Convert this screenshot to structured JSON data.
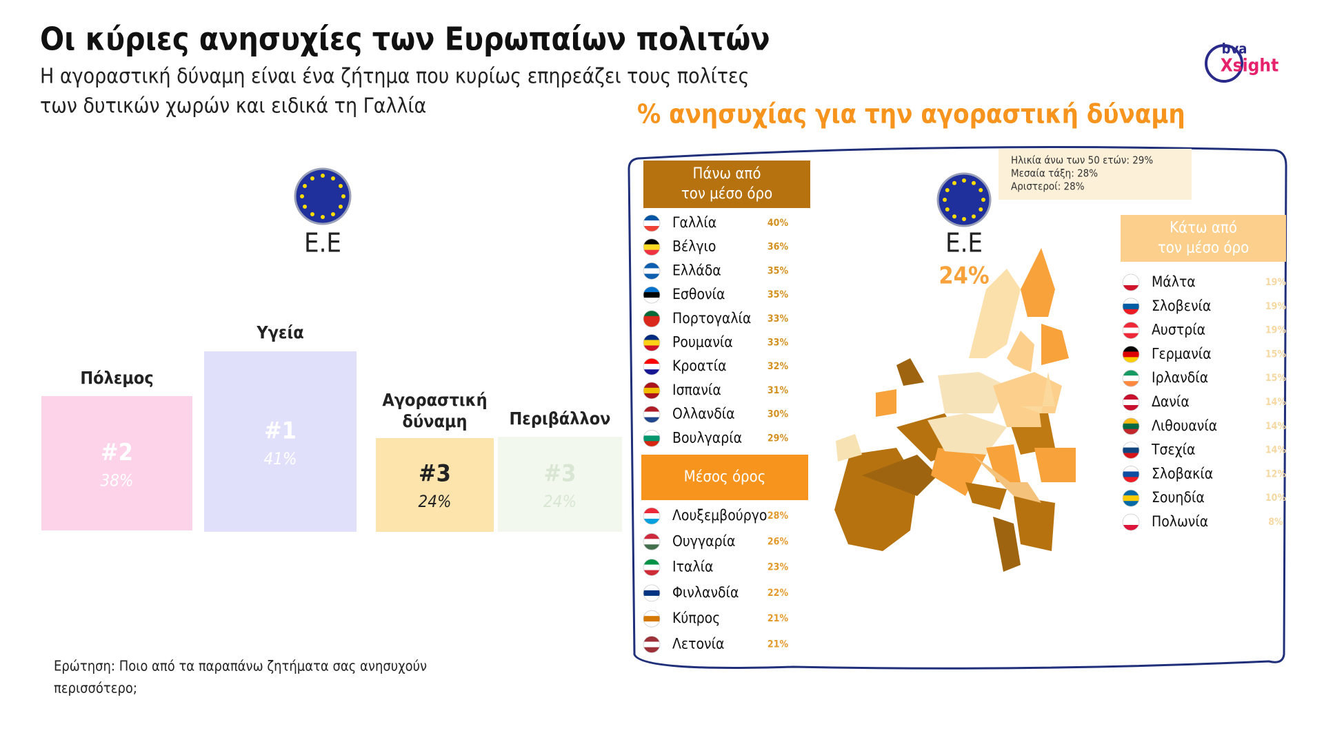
{
  "header": {
    "title": "Οι κύριες ανησυχίες των Ευρωπαίων πολιτών",
    "subtitle_lines": [
      "Η αγοραστική δύναμη είναι ένα ζήτημα που κυρίως επηρεάζει τους πολίτες",
      "των δυτικών χωρών και ειδικά τη Γαλλία"
    ],
    "logo": [
      "bva",
      "Xsight"
    ]
  },
  "left": {
    "eu_label": "Ε.Ε",
    "concerns": [
      {
        "label_lines": [
          "Πόλεμος"
        ],
        "rank": "#2",
        "value": "38%",
        "color": "#fdd3ea"
      },
      {
        "label_lines": [
          "Υγεία"
        ],
        "rank": "#1",
        "value": "41%",
        "color": "#e0e0fb"
      },
      {
        "label_lines": [
          "Αγοραστική",
          "δύναμη"
        ],
        "rank": "#3",
        "value": "24%",
        "color": "#fde4ac"
      },
      {
        "label_lines": [
          "Περιβάλλον"
        ],
        "rank": "#3",
        "value": "24%",
        "color": "#f3f8ee"
      }
    ],
    "question_lines": [
      "Ερώτηση: Ποιο από τα παραπάνω ζητήματα σας ανησυχούν",
      "περισσότερο;"
    ]
  },
  "map": {
    "title": "% ανησυχίας για την αγοραστική δύναμη",
    "note_lines": [
      "Ηλικία άνω των 50 ετών: 29%",
      "Μεσαία τάξη: 28%",
      "Αριστεροί: 28%"
    ],
    "eu_label": "Ε.Ε",
    "eu_value": "24%",
    "above": {
      "header_lines": [
        "Πάνω από",
        "τον μέσο όρο"
      ],
      "rows": [
        {
          "name": "Γαλλία",
          "value": "40%",
          "flag": [
            "#0055a4",
            "#ffffff",
            "#ef4135"
          ]
        },
        {
          "name": "Βέλγιο",
          "value": "36%",
          "flag": [
            "#000000",
            "#fdda24",
            "#ef3340"
          ]
        },
        {
          "name": "Ελλάδα",
          "value": "35%",
          "flag": [
            "#0d5eaf",
            "#ffffff",
            "#0d5eaf"
          ]
        },
        {
          "name": "Εσθονία",
          "value": "35%",
          "flag": [
            "#0072ce",
            "#000000",
            "#ffffff"
          ]
        },
        {
          "name": "Πορτογαλία",
          "value": "33%",
          "flag": [
            "#046a38",
            "#da291c",
            "#da291c"
          ]
        },
        {
          "name": "Ρουμανία",
          "value": "33%",
          "flag": [
            "#002b7f",
            "#fcd116",
            "#ce1126"
          ]
        },
        {
          "name": "Κροατία",
          "value": "32%",
          "flag": [
            "#ff0000",
            "#ffffff",
            "#171796"
          ]
        },
        {
          "name": "Ισπανία",
          "value": "31%",
          "flag": [
            "#aa151b",
            "#f1bf00",
            "#aa151b"
          ]
        },
        {
          "name": "Ολλανδία",
          "value": "30%",
          "flag": [
            "#ae1c28",
            "#ffffff",
            "#21468b"
          ]
        },
        {
          "name": "Βουλγαρία",
          "value": "29%",
          "flag": [
            "#ffffff",
            "#00966e",
            "#d62612"
          ]
        }
      ]
    },
    "average": {
      "header_lines": [
        "Μέσος όρος"
      ],
      "rows": [
        {
          "name": "Λουξεμβούργο",
          "value": "28%",
          "flag": [
            "#ed2939",
            "#ffffff",
            "#00a1de"
          ]
        },
        {
          "name": "Ουγγαρία",
          "value": "26%",
          "flag": [
            "#cd2a3e",
            "#ffffff",
            "#436f4d"
          ]
        },
        {
          "name": "Ιταλία",
          "value": "23%",
          "flag": [
            "#009246",
            "#ffffff",
            "#ce2b37"
          ]
        },
        {
          "name": "Φινλανδία",
          "value": "22%",
          "flag": [
            "#ffffff",
            "#003580",
            "#ffffff"
          ]
        },
        {
          "name": "Κύπρος",
          "value": "21%",
          "flag": [
            "#ffffff",
            "#d57800",
            "#ffffff"
          ]
        },
        {
          "name": "Λετονία",
          "value": "21%",
          "flag": [
            "#9e3039",
            "#ffffff",
            "#9e3039"
          ]
        }
      ]
    },
    "below": {
      "header_lines": [
        "Κάτω από",
        "τον μέσο όρο"
      ],
      "rows": [
        {
          "name": "Μάλτα",
          "value": "19%",
          "flag": [
            "#ffffff",
            "#ffffff",
            "#cf142b"
          ]
        },
        {
          "name": "Σλοβενία",
          "value": "19%",
          "flag": [
            "#ffffff",
            "#005da4",
            "#ed1c24"
          ]
        },
        {
          "name": "Αυστρία",
          "value": "19%",
          "flag": [
            "#ed2939",
            "#ffffff",
            "#ed2939"
          ]
        },
        {
          "name": "Γερμανία",
          "value": "15%",
          "flag": [
            "#000000",
            "#dd0000",
            "#ffce00"
          ]
        },
        {
          "name": "Ιρλανδία",
          "value": "15%",
          "flag": [
            "#169b62",
            "#ffffff",
            "#ff883e"
          ]
        },
        {
          "name": "Δανία",
          "value": "14%",
          "flag": [
            "#c8102e",
            "#ffffff",
            "#c8102e"
          ]
        },
        {
          "name": "Λιθουανία",
          "value": "14%",
          "flag": [
            "#fdb913",
            "#006a44",
            "#c1272d"
          ]
        },
        {
          "name": "Τσεχία",
          "value": "14%",
          "flag": [
            "#ffffff",
            "#11457e",
            "#d7141a"
          ]
        },
        {
          "name": "Σλοβακία",
          "value": "12%",
          "flag": [
            "#ffffff",
            "#0b4ea2",
            "#ee1c25"
          ]
        },
        {
          "name": "Σουηδία",
          "value": "10%",
          "flag": [
            "#006aa7",
            "#fecc00",
            "#006aa7"
          ]
        },
        {
          "name": "Πολωνία",
          "value": "8%",
          "flag": [
            "#ffffff",
            "#ffffff",
            "#dc143c"
          ]
        }
      ]
    }
  }
}
